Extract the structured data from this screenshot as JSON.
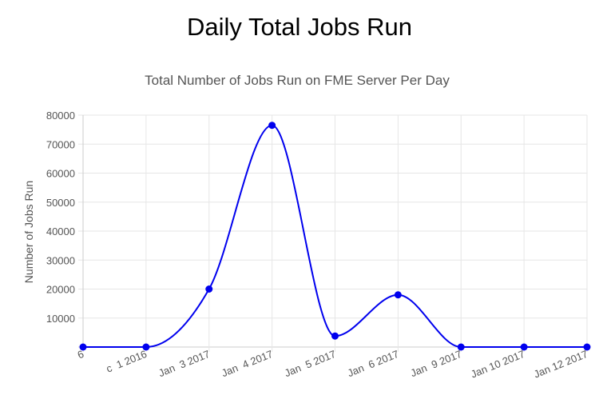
{
  "page": {
    "title": "Daily Total Jobs Run"
  },
  "chart_data": {
    "type": "line",
    "title": "Total Number of Jobs Run on FME Server Per Day",
    "xlabel": "",
    "ylabel": "Number of Jobs Run",
    "categories": [
      "6",
      "c  1 2016",
      "Jan  3 2017",
      "Jan  4 2017",
      "Jan  5 2017",
      "Jan  6 2017",
      "Jan  9 2017",
      "Jan 10 2017",
      "Jan 12 2017"
    ],
    "series": [
      {
        "values": [
          0,
          0,
          20000,
          76500,
          3800,
          18000,
          0,
          0,
          0
        ]
      }
    ],
    "yticks": [
      "10000",
      "20000",
      "30000",
      "40000",
      "50000",
      "60000",
      "70000",
      "80000"
    ],
    "ylim": [
      0,
      80000
    ],
    "grid": true,
    "legend": "none",
    "colors": {
      "line": "#0000ee",
      "grid": "#e6e6e6",
      "axis": "#cccccc"
    }
  }
}
